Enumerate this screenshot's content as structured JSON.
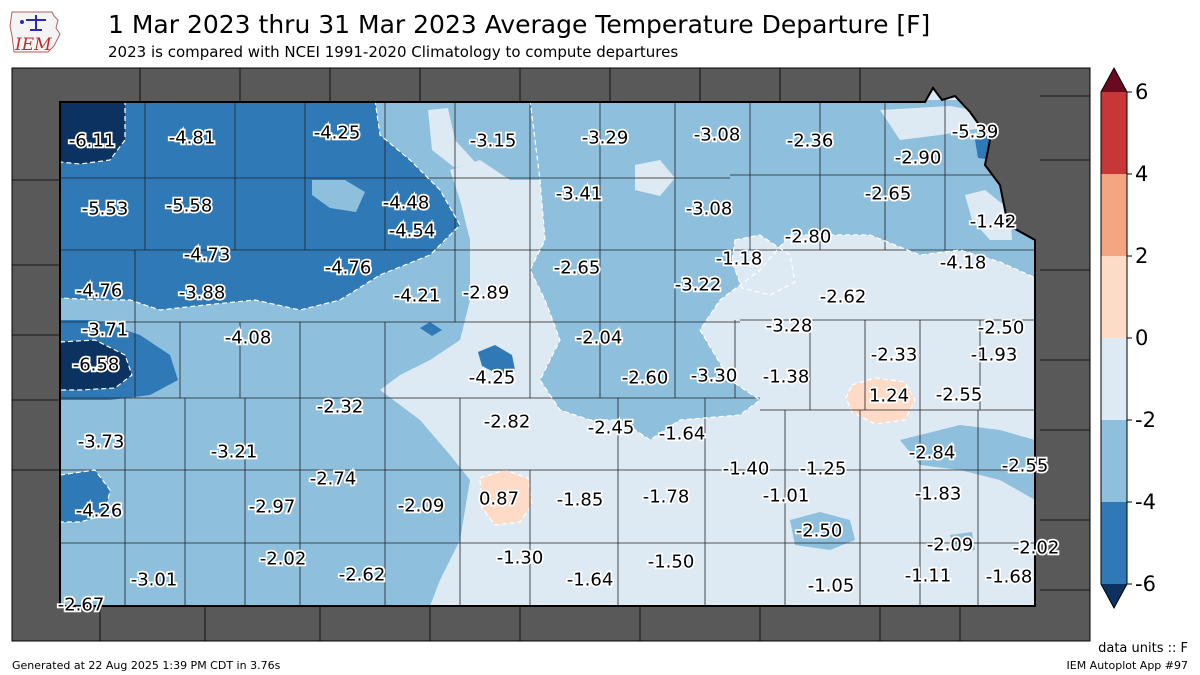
{
  "header": {
    "title": "1 Mar 2023 thru 31 Mar 2023 Average Temperature Departure [F]",
    "subtitle": "2023 is compared with NCEI 1991-2020 Climatology to compute departures",
    "logo_text": "IEM"
  },
  "colorbar": {
    "ticks": [
      "6",
      "4",
      "2",
      "0",
      "-2",
      "-4",
      "-6"
    ],
    "bins": [
      {
        "from": 4,
        "to": 6,
        "color": "#c83737"
      },
      {
        "from": 2,
        "to": 4,
        "color": "#f4a582"
      },
      {
        "from": 0,
        "to": 2,
        "color": "#fddbc7"
      },
      {
        "from": -2,
        "to": 0,
        "color": "#dde9f3"
      },
      {
        "from": -4,
        "to": -2,
        "color": "#8ebfdc"
      },
      {
        "from": -6,
        "to": -4,
        "color": "#2f79b6"
      }
    ],
    "over_color": "#6b0a1f",
    "under_color": "#0b3260"
  },
  "colors": {
    "neighbor_states": "#595959",
    "background": "#ffffff",
    "very_cold": "#0b3260",
    "cold": "#2f79b6",
    "cool": "#8ebfdc",
    "near_normal": "#dde9f3",
    "warm": "#fddbc7"
  },
  "stations": [
    {
      "label": "-6.11",
      "value": -6.11
    },
    {
      "label": "-4.81",
      "value": -4.81
    },
    {
      "label": "-4.25",
      "value": -4.25
    },
    {
      "label": "-3.15",
      "value": -3.15
    },
    {
      "label": "-3.29",
      "value": -3.29
    },
    {
      "label": "-3.08",
      "value": -3.08
    },
    {
      "label": "-2.36",
      "value": -2.36
    },
    {
      "label": "-5.39",
      "value": -5.39
    },
    {
      "label": "-2.90",
      "value": -2.9
    },
    {
      "label": "-5.53",
      "value": -5.53
    },
    {
      "label": "-5.58",
      "value": -5.58
    },
    {
      "label": "-4.48",
      "value": -4.48
    },
    {
      "label": "-3.41",
      "value": -3.41
    },
    {
      "label": "-3.08",
      "value": -3.08
    },
    {
      "label": "-2.65",
      "value": -2.65
    },
    {
      "label": "-1.42",
      "value": -1.42
    },
    {
      "label": "-4.54",
      "value": -4.54
    },
    {
      "label": "-2.80",
      "value": -2.8
    },
    {
      "label": "-4.73",
      "value": -4.73
    },
    {
      "label": "-4.76",
      "value": -4.76
    },
    {
      "label": "-2.65",
      "value": -2.65
    },
    {
      "label": "-1.18",
      "value": -1.18
    },
    {
      "label": "-4.18",
      "value": -4.18
    },
    {
      "label": "-4.76",
      "value": -4.76
    },
    {
      "label": "-3.88",
      "value": -3.88
    },
    {
      "label": "-4.21",
      "value": -4.21
    },
    {
      "label": "-2.89",
      "value": -2.89
    },
    {
      "label": "-3.22",
      "value": -3.22
    },
    {
      "label": "-2.62",
      "value": -2.62
    },
    {
      "label": "-3.71",
      "value": -3.71
    },
    {
      "label": "-3.28",
      "value": -3.28
    },
    {
      "label": "-2.50",
      "value": -2.5
    },
    {
      "label": "-4.08",
      "value": -4.08
    },
    {
      "label": "-2.04",
      "value": -2.04
    },
    {
      "label": "-2.33",
      "value": -2.33
    },
    {
      "label": "-1.93",
      "value": -1.93
    },
    {
      "label": "-6.58",
      "value": -6.58
    },
    {
      "label": "-4.25",
      "value": -4.25
    },
    {
      "label": "-2.60",
      "value": -2.6
    },
    {
      "label": "-3.30",
      "value": -3.3
    },
    {
      "label": "-1.38",
      "value": -1.38
    },
    {
      "label": "1.24",
      "value": 1.24
    },
    {
      "label": "-2.55",
      "value": -2.55
    },
    {
      "label": "-2.32",
      "value": -2.32
    },
    {
      "label": "-2.82",
      "value": -2.82
    },
    {
      "label": "-2.45",
      "value": -2.45
    },
    {
      "label": "-1.64",
      "value": -1.64
    },
    {
      "label": "-3.73",
      "value": -3.73
    },
    {
      "label": "-3.21",
      "value": -3.21
    },
    {
      "label": "-2.84",
      "value": -2.84
    },
    {
      "label": "-1.40",
      "value": -1.4
    },
    {
      "label": "-1.25",
      "value": -1.25
    },
    {
      "label": "-2.55",
      "value": -2.55
    },
    {
      "label": "-2.74",
      "value": -2.74
    },
    {
      "label": "-1.83",
      "value": -1.83
    },
    {
      "label": "-2.97",
      "value": -2.97
    },
    {
      "label": "-2.09",
      "value": -2.09
    },
    {
      "label": "0.87",
      "value": 0.87
    },
    {
      "label": "-1.85",
      "value": -1.85
    },
    {
      "label": "-1.78",
      "value": -1.78
    },
    {
      "label": "-1.01",
      "value": -1.01
    },
    {
      "label": "-4.26",
      "value": -4.26
    },
    {
      "label": "-2.50",
      "value": -2.5
    },
    {
      "label": "-2.09",
      "value": -2.09
    },
    {
      "label": "-2.02",
      "value": -2.02
    },
    {
      "label": "-2.02",
      "value": -2.02
    },
    {
      "label": "-1.30",
      "value": -1.3
    },
    {
      "label": "-1.50",
      "value": -1.5
    },
    {
      "label": "-3.01",
      "value": -3.01
    },
    {
      "label": "-2.62",
      "value": -2.62
    },
    {
      "label": "-1.64",
      "value": -1.64
    },
    {
      "label": "-1.11",
      "value": -1.11
    },
    {
      "label": "-1.68",
      "value": -1.68
    },
    {
      "label": "-1.05",
      "value": -1.05
    },
    {
      "label": "-2.67",
      "value": -2.67
    }
  ],
  "footer": {
    "units": "data units :: F",
    "generated": "Generated at 22 Aug 2025 1:39 PM CDT in 3.76s",
    "app": "IEM Autoplot App #97"
  }
}
